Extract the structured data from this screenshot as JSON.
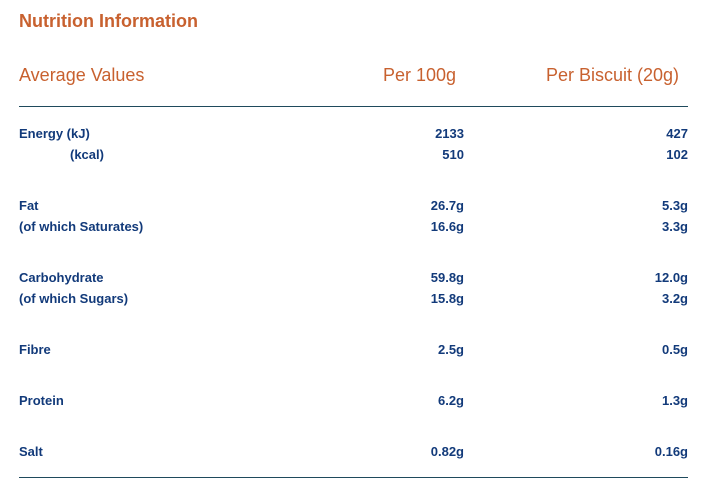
{
  "title": "Nutrition Information",
  "header": {
    "label": "Average Values",
    "col1": "Per 100g",
    "col2": "Per Biscuit (20g)"
  },
  "rows": [
    {
      "label": "Energy (kJ)",
      "per100": "2133",
      "perBiscuit": "427"
    },
    {
      "label": "(kcal)",
      "per100": "510",
      "perBiscuit": "102"
    },
    {
      "label": "Fat",
      "per100": "26.7g",
      "perBiscuit": "5.3g"
    },
    {
      "label": "(of which Saturates)",
      "per100": "16.6g",
      "perBiscuit": "3.3g"
    },
    {
      "label": "Carbohydrate",
      "per100": "59.8g",
      "perBiscuit": "12.0g"
    },
    {
      "label": "(of which Sugars)",
      "per100": "15.8g",
      "perBiscuit": "3.2g"
    },
    {
      "label": "Fibre",
      "per100": "2.5g",
      "perBiscuit": "0.5g"
    },
    {
      "label": "Protein",
      "per100": "6.2g",
      "perBiscuit": "1.3g"
    },
    {
      "label": "Salt",
      "per100": "0.82g",
      "perBiscuit": "0.16g"
    }
  ]
}
